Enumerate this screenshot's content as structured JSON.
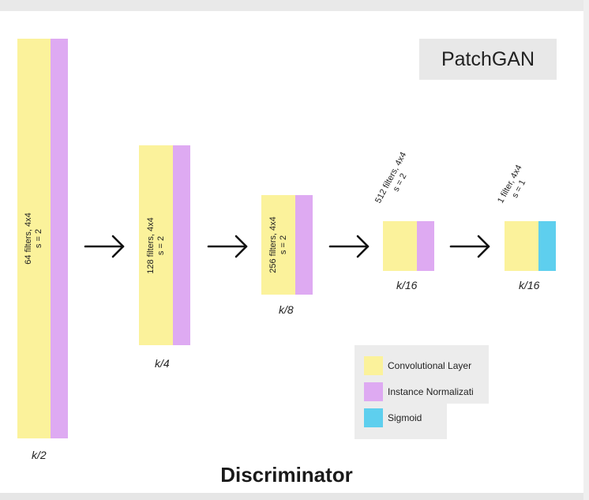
{
  "title": "PatchGAN",
  "footer_title": "Discriminator",
  "colors": {
    "conv": "#fbf29b",
    "norm": "#deaaf2",
    "sigmoid": "#5ecfee"
  },
  "layers": [
    {
      "filters_label": "64 filters, 4x4",
      "stride_label": "s = 2",
      "size_label": "k/2"
    },
    {
      "filters_label": "128 filters, 4x4",
      "stride_label": "s = 2",
      "size_label": "k/4"
    },
    {
      "filters_label": "256 filters, 4x4",
      "stride_label": "s = 2",
      "size_label": "k/8"
    },
    {
      "filters_label": "512 filters, 4x4",
      "stride_label": "s = 2",
      "size_label": "k/16"
    },
    {
      "filters_label": "1 filter, 4x4",
      "stride_label": "s = 1",
      "size_label": "k/16"
    }
  ],
  "legend": {
    "items": [
      {
        "label": "Convolutional Layer",
        "color": "#fbf29b"
      },
      {
        "label": "Instance Normalizati",
        "color": "#deaaf2"
      },
      {
        "label": "Sigmoid",
        "color": "#5ecfee"
      }
    ]
  }
}
